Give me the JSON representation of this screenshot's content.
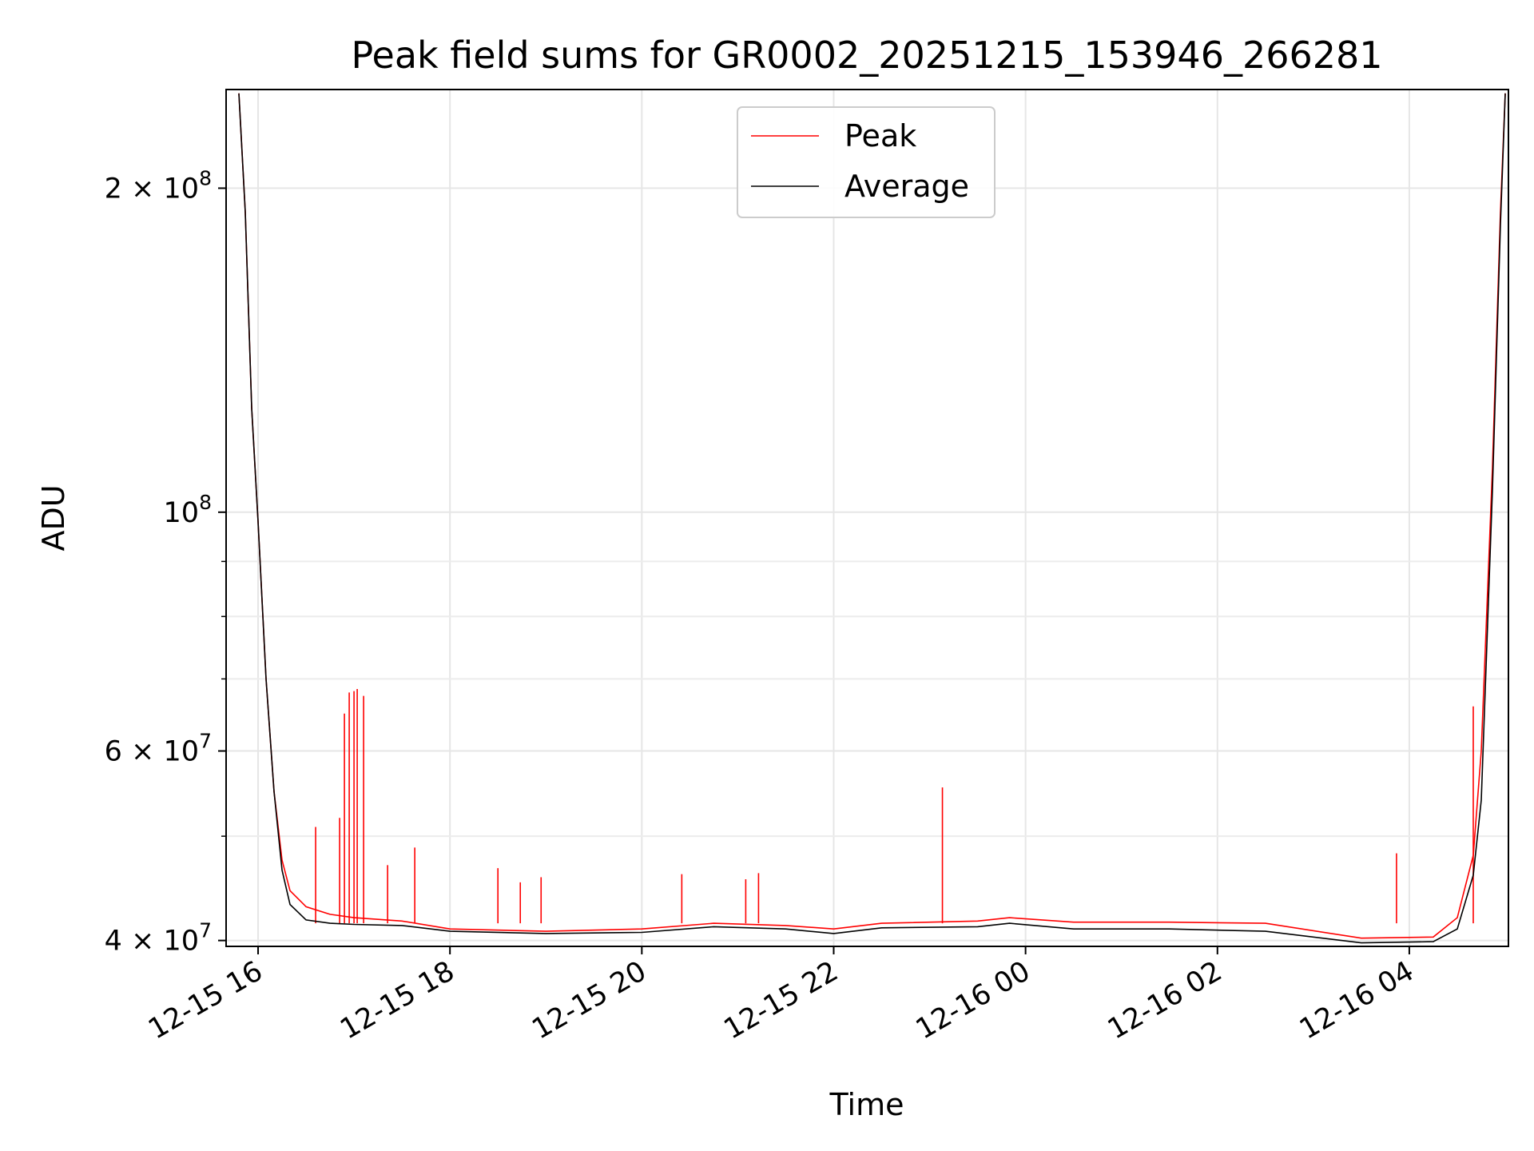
{
  "chart_data": {
    "type": "line",
    "title": "Peak field sums for GR0002_20251215_153946_266281",
    "xlabel": "Time",
    "ylabel": "ADU",
    "yscale": "log",
    "ylim": [
      39500000,
      247000000
    ],
    "xlim": [
      "12-15 15:40",
      "12-16 05:02"
    ],
    "grid": "on",
    "legend_placement": "upper center",
    "x_ticks": [
      {
        "x": "12-15 16:00",
        "label": "12-15 16"
      },
      {
        "x": "12-15 18:00",
        "label": "12-15 18"
      },
      {
        "x": "12-15 20:00",
        "label": "12-15 20"
      },
      {
        "x": "12-15 22:00",
        "label": "12-15 22"
      },
      {
        "x": "12-16 00:00",
        "label": "12-16 00"
      },
      {
        "x": "12-16 02:00",
        "label": "12-16 02"
      },
      {
        "x": "12-16 04:00",
        "label": "12-16 04"
      }
    ],
    "y_ticks": [
      {
        "value": 40000000,
        "label": "4 × 10",
        "exp": "7"
      },
      {
        "value": 60000000,
        "label": "6 × 10",
        "exp": "7"
      },
      {
        "value": 100000000,
        "label": "10",
        "exp": "8"
      },
      {
        "value": 200000000,
        "label": "2 × 10",
        "exp": "8"
      }
    ],
    "y_minor_ticks": [
      50000000,
      70000000,
      80000000,
      90000000
    ],
    "series": [
      {
        "name": "Peak",
        "color": "#ff0000",
        "points": [
          [
            "12-15 15:48",
            245000000
          ],
          [
            "12-15 15:52",
            190000000
          ],
          [
            "12-15 15:56",
            125000000
          ],
          [
            "12-15 16:00",
            98000000
          ],
          [
            "12-15 16:05",
            70000000
          ],
          [
            "12-15 16:10",
            55000000
          ],
          [
            "12-15 16:15",
            47500000
          ],
          [
            "12-15 16:20",
            44500000
          ],
          [
            "12-15 16:30",
            43000000
          ],
          [
            "12-15 16:45",
            42300000
          ],
          [
            "12-15 17:00",
            42000000
          ],
          [
            "12-15 17:30",
            41700000
          ],
          [
            "12-15 18:00",
            41000000
          ],
          [
            "12-15 19:00",
            40800000
          ],
          [
            "12-15 20:00",
            41000000
          ],
          [
            "12-15 20:45",
            41500000
          ],
          [
            "12-15 21:30",
            41300000
          ],
          [
            "12-15 22:00",
            41000000
          ],
          [
            "12-15 22:30",
            41500000
          ],
          [
            "12-15 23:30",
            41700000
          ],
          [
            "12-15 23:50",
            42000000
          ],
          [
            "12-16 00:30",
            41600000
          ],
          [
            "12-16 01:30",
            41600000
          ],
          [
            "12-16 02:30",
            41500000
          ],
          [
            "12-16 03:30",
            40200000
          ],
          [
            "12-16 04:15",
            40300000
          ],
          [
            "12-16 04:30",
            42000000
          ],
          [
            "12-16 04:40",
            48000000
          ],
          [
            "12-16 04:45",
            60000000
          ],
          [
            "12-16 04:52",
            110000000
          ],
          [
            "12-16 04:57",
            190000000
          ],
          [
            "12-16 05:00",
            245000000
          ]
        ],
        "spikes": [
          [
            "12-15 16:36",
            51000000
          ],
          [
            "12-15 16:51",
            52000000
          ],
          [
            "12-15 16:54",
            65000000
          ],
          [
            "12-15 16:57",
            68000000
          ],
          [
            "12-15 17:00",
            68200000
          ],
          [
            "12-15 17:02",
            68500000
          ],
          [
            "12-15 17:06",
            67500000
          ],
          [
            "12-15 17:21",
            47000000
          ],
          [
            "12-15 17:38",
            48800000
          ],
          [
            "12-15 18:30",
            46700000
          ],
          [
            "12-15 18:44",
            45300000
          ],
          [
            "12-15 18:57",
            45800000
          ],
          [
            "12-15 20:25",
            46100000
          ],
          [
            "12-15 21:05",
            45600000
          ],
          [
            "12-15 21:13",
            46200000
          ],
          [
            "12-15 23:08",
            55500000
          ],
          [
            "12-16 03:52",
            48200000
          ],
          [
            "12-16 04:40",
            66000000
          ]
        ]
      },
      {
        "name": "Average",
        "color": "#000000",
        "points": [
          [
            "12-15 15:48",
            245000000
          ],
          [
            "12-15 15:52",
            190000000
          ],
          [
            "12-15 15:56",
            125000000
          ],
          [
            "12-15 16:00",
            98000000
          ],
          [
            "12-15 16:05",
            70000000
          ],
          [
            "12-15 16:10",
            55000000
          ],
          [
            "12-15 16:15",
            46500000
          ],
          [
            "12-15 16:20",
            43200000
          ],
          [
            "12-15 16:30",
            41800000
          ],
          [
            "12-15 16:45",
            41500000
          ],
          [
            "12-15 17:00",
            41400000
          ],
          [
            "12-15 17:30",
            41300000
          ],
          [
            "12-15 18:00",
            40800000
          ],
          [
            "12-15 19:00",
            40600000
          ],
          [
            "12-15 20:00",
            40700000
          ],
          [
            "12-15 20:45",
            41200000
          ],
          [
            "12-15 21:30",
            41000000
          ],
          [
            "12-15 22:00",
            40600000
          ],
          [
            "12-15 22:30",
            41100000
          ],
          [
            "12-15 23:30",
            41200000
          ],
          [
            "12-15 23:50",
            41500000
          ],
          [
            "12-16 00:30",
            41000000
          ],
          [
            "12-16 01:30",
            41000000
          ],
          [
            "12-16 02:30",
            40800000
          ],
          [
            "12-16 03:30",
            39800000
          ],
          [
            "12-16 04:15",
            39900000
          ],
          [
            "12-16 04:30",
            41000000
          ],
          [
            "12-16 04:40",
            46000000
          ],
          [
            "12-16 04:45",
            54000000
          ],
          [
            "12-16 04:52",
            105000000
          ],
          [
            "12-16 04:57",
            185000000
          ],
          [
            "12-16 05:00",
            245000000
          ]
        ]
      }
    ]
  }
}
